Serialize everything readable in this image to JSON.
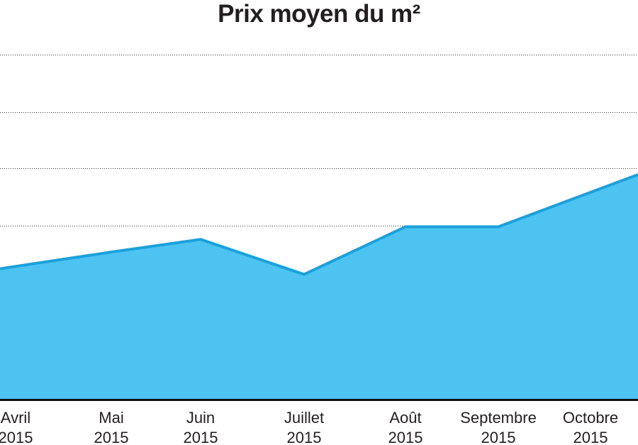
{
  "chart_data": {
    "type": "area",
    "title": "Prix moyen du m²",
    "xlabel": "",
    "ylabel": "",
    "categories": [
      [
        "Avril",
        "2015"
      ],
      [
        "Mai",
        "2015"
      ],
      [
        "Juin",
        "2015"
      ],
      [
        "Juillet",
        "2015"
      ],
      [
        "Août",
        "2015"
      ],
      [
        "Septembre",
        "2015"
      ],
      [
        "Octobre",
        "2015"
      ]
    ],
    "series": [
      {
        "values": [
          2.31,
          2.56,
          2.78,
          2.17,
          3.0,
          3.0,
          3.6
        ]
      }
    ],
    "ylim": [
      0,
      6
    ],
    "y_ticks_labeled": false,
    "grid": true,
    "legend": "none",
    "colors": {
      "area_fill": "#4dc3f2",
      "line": "#1ba1dc",
      "baseline": "#111111",
      "grid": "#333333"
    }
  }
}
